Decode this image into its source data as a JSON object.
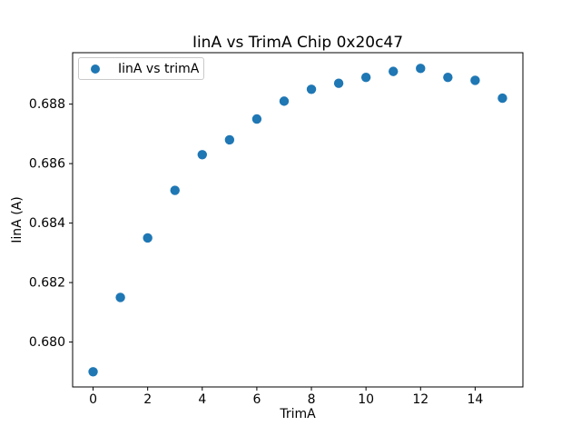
{
  "chart_data": {
    "type": "scatter",
    "title": "IinA vs TrimA Chip 0x20c47",
    "xlabel": "TrimA",
    "ylabel": "IinA (A)",
    "legend": {
      "position": "upper left",
      "entries": [
        "IinA vs trimA"
      ]
    },
    "series": [
      {
        "name": "IinA vs trimA",
        "marker": "circle",
        "color": "#1f77b4",
        "x": [
          0,
          1,
          2,
          3,
          4,
          5,
          6,
          7,
          8,
          9,
          10,
          11,
          12,
          13,
          14,
          15
        ],
        "y": [
          0.679,
          0.6815,
          0.6835,
          0.6851,
          0.6863,
          0.6868,
          0.6875,
          0.6881,
          0.6885,
          0.6887,
          0.6889,
          0.6891,
          0.6892,
          0.6889,
          0.6888,
          0.6882
        ]
      }
    ],
    "xlim": [
      -0.75,
      15.75
    ],
    "ylim": [
      0.67849,
      0.68973
    ],
    "xticks": {
      "values": [
        0,
        2,
        4,
        6,
        8,
        10,
        12,
        14
      ],
      "labels": [
        "0",
        "2",
        "4",
        "6",
        "8",
        "10",
        "12",
        "14"
      ]
    },
    "yticks": {
      "values": [
        0.68,
        0.682,
        0.684,
        0.686,
        0.688
      ],
      "labels": [
        "0.680",
        "0.682",
        "0.684",
        "0.686",
        "0.688"
      ]
    },
    "grid": false,
    "background": "#ffffff",
    "spine_color": "#000000",
    "text_color": "#000000"
  }
}
